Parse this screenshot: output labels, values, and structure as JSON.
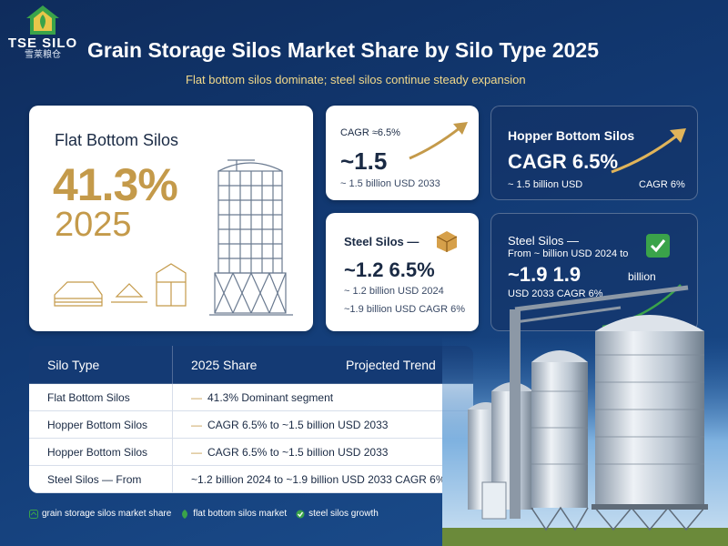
{
  "logo": {
    "brand": "TSE SILO",
    "brand_sub": "雪莱粮仓"
  },
  "title": "Grain Storage Silos Market Share by Silo Type 2025",
  "subtitle": "Flat bottom silos dominate; steel silos continue steady expansion",
  "card_flat": {
    "heading": "Flat Bottom Silos",
    "share": "41.3%",
    "year": "2025"
  },
  "card_cagr": {
    "heading": "CAGR ≈6.5%",
    "value": "~1.5",
    "sub": "~ 1.5 billion USD 2033"
  },
  "card_hopper": {
    "heading": "Hopper Bottom Silos",
    "value": "CAGR 6.5%",
    "sub1": "~ 1.5 billion USD",
    "sub2": "CAGR 6%"
  },
  "card_steel": {
    "heading": "Steel Silos —",
    "value": "~1.2 6.5%",
    "sub1": "~ 1.2 billion USD 2024",
    "sub2": "~1.9 billion USD CAGR 6%"
  },
  "card_steel2": {
    "heading": "Steel Silos —",
    "sub0": "From ~ billion USD 2024 to",
    "value": "~1.9 1.9",
    "value_unit": "billion",
    "sub1": "USD 2033 CAGR 6%"
  },
  "table": {
    "headers": [
      "Silo Type",
      "2025 Share",
      "Projected Trend"
    ],
    "rows": [
      {
        "type": "Flat Bottom Silos",
        "detail": "41.3% Dominant segment"
      },
      {
        "type": "Hopper Bottom Silos",
        "detail": "CAGR 6.5% to ~1.5 billion USD 2033"
      },
      {
        "type": "Hopper Bottom Silos",
        "detail": "CAGR 6.5% to ~1.5 billion USD 2033"
      },
      {
        "type": "Steel Silos — From",
        "detail": "~1.2 billion 2024 to ~1.9 billion USD 2033 CAGR 6%"
      }
    ]
  },
  "footer": [
    "grain storage silos market share",
    "flat bottom silos market",
    "steel silos growth"
  ],
  "colors": {
    "gold": "#c49a4a",
    "navy": "#143a74",
    "green": "#3aa34a"
  }
}
